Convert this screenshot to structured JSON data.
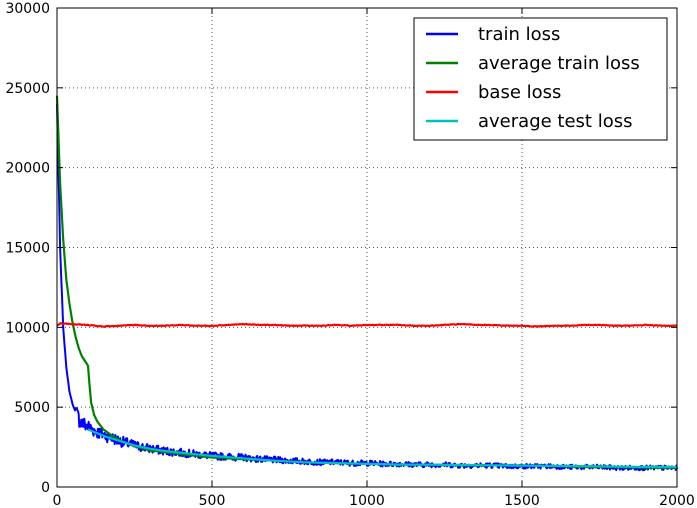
{
  "chart_data": {
    "type": "line",
    "title": "",
    "xlabel": "",
    "ylabel": "",
    "xlim": [
      0,
      2000
    ],
    "ylim": [
      0,
      30000
    ],
    "x_ticks": [
      0,
      500,
      1000,
      1500,
      2000
    ],
    "y_ticks": [
      0,
      5000,
      10000,
      15000,
      20000,
      25000,
      30000
    ],
    "x_tick_labels": [
      "0",
      "500",
      "1000",
      "1500",
      "2000"
    ],
    "y_tick_labels": [
      "0",
      "5000",
      "10000",
      "15000",
      "20000",
      "25000",
      "30000"
    ],
    "grid": true,
    "legend_position": "top-right",
    "series": [
      {
        "name": "train loss",
        "color": "#0000ff",
        "x": [
          0,
          10,
          20,
          30,
          40,
          50,
          60,
          70,
          80,
          90,
          100,
          120,
          140,
          160,
          180,
          200,
          225,
          250,
          275,
          300,
          350,
          400,
          450,
          500,
          550,
          600,
          650,
          700,
          750,
          800,
          850,
          900,
          950,
          1000,
          1050,
          1100,
          1150,
          1200,
          1250,
          1300,
          1350,
          1400,
          1450,
          1500,
          1550,
          1600,
          1650,
          1700,
          1750,
          1800,
          1850,
          1900,
          1950,
          2000
        ],
        "values": [
          24000,
          15000,
          10000,
          7500,
          6000,
          5200,
          4700,
          4300,
          4000,
          3900,
          3800,
          3550,
          3350,
          3200,
          3050,
          2900,
          2750,
          2600,
          2500,
          2400,
          2250,
          2150,
          2050,
          1950,
          1900,
          1850,
          1750,
          1700,
          1650,
          1600,
          1550,
          1550,
          1500,
          1500,
          1450,
          1450,
          1400,
          1400,
          1400,
          1350,
          1350,
          1350,
          1300,
          1300,
          1300,
          1300,
          1250,
          1250,
          1250,
          1200,
          1200,
          1200,
          1200,
          1200
        ]
      },
      {
        "name": "average train loss",
        "color": "#008000",
        "x": [
          0,
          10,
          20,
          30,
          40,
          50,
          60,
          70,
          80,
          90,
          100,
          105,
          110,
          120,
          130,
          140,
          150,
          175,
          200,
          250,
          300,
          400,
          500,
          600,
          700,
          800,
          900,
          1000,
          1100,
          1200,
          1300,
          1400,
          1500,
          1600,
          1700,
          1800,
          1900,
          2000
        ],
        "values": [
          24500,
          19000,
          15500,
          13000,
          11500,
          10300,
          9400,
          8700,
          8200,
          7900,
          7600,
          6400,
          5300,
          4500,
          4100,
          3850,
          3600,
          3250,
          2950,
          2550,
          2300,
          2050,
          1850,
          1750,
          1650,
          1550,
          1500,
          1450,
          1400,
          1400,
          1350,
          1350,
          1350,
          1300,
          1250,
          1250,
          1200,
          1200
        ]
      },
      {
        "name": "base loss",
        "color": "#ff0000",
        "x": [
          0,
          10,
          50,
          100,
          150,
          200,
          250,
          300,
          350,
          400,
          450,
          500,
          550,
          600,
          650,
          700,
          750,
          800,
          850,
          900,
          950,
          1000,
          1050,
          1100,
          1150,
          1200,
          1250,
          1300,
          1350,
          1400,
          1450,
          1500,
          1550,
          1600,
          1650,
          1700,
          1750,
          1800,
          1850,
          1900,
          1950,
          2000
        ],
        "values": [
          10100,
          10250,
          10200,
          10150,
          10050,
          10100,
          10150,
          10100,
          10100,
          10150,
          10100,
          10100,
          10150,
          10200,
          10150,
          10150,
          10100,
          10100,
          10100,
          10150,
          10100,
          10150,
          10150,
          10150,
          10100,
          10100,
          10150,
          10200,
          10150,
          10150,
          10100,
          10100,
          10050,
          10100,
          10100,
          10150,
          10150,
          10100,
          10100,
          10150,
          10100,
          10100
        ]
      },
      {
        "name": "average test loss",
        "color": "#00bfbf",
        "x": [
          100,
          150,
          200,
          250,
          300,
          350,
          400,
          450,
          500,
          600,
          700,
          800,
          900,
          1000,
          1100,
          1200,
          1300,
          1400,
          1500,
          1600,
          1700,
          1800,
          1900,
          2000
        ],
        "values": [
          3600,
          3200,
          2900,
          2600,
          2400,
          2250,
          2150,
          2050,
          1950,
          1800,
          1650,
          1550,
          1500,
          1450,
          1400,
          1400,
          1380,
          1360,
          1340,
          1320,
          1300,
          1280,
          1260,
          1250
        ]
      }
    ]
  }
}
